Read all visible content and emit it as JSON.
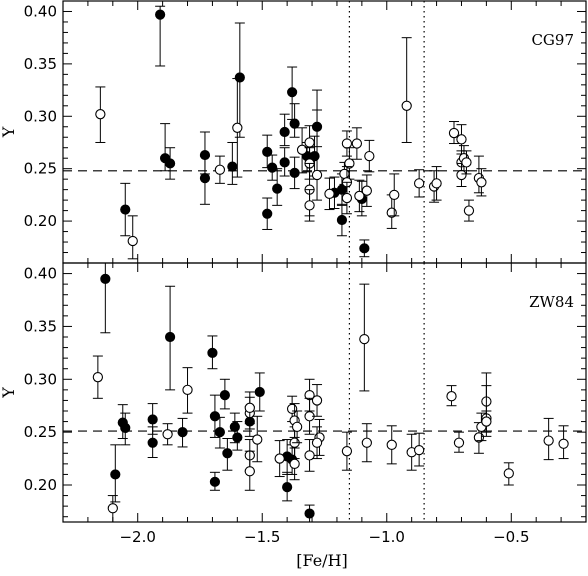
{
  "chart_data": [
    {
      "type": "scatter",
      "panel_label": "CG97",
      "ylabel": "Y",
      "xlim": [
        -2.3,
        -0.2
      ],
      "ylim": [
        0.16,
        0.41
      ],
      "xticks": [
        -2.0,
        -1.5,
        -1.0,
        -0.5
      ],
      "yticks": [
        0.2,
        0.25,
        0.3,
        0.35,
        0.4
      ],
      "ytick_labels": [
        "0.20",
        "0.25",
        "0.30",
        "0.35",
        "0.40"
      ],
      "reference_line_y": 0.248,
      "vertical_lines_x": [
        -1.15,
        -0.85
      ],
      "series": [
        {
          "marker": "filled",
          "points": [
            {
              "x": -2.05,
              "y": 0.211,
              "lo": 0.186,
              "hi": 0.236
            },
            {
              "x": -1.91,
              "y": 0.397,
              "lo": 0.348,
              "hi": 0.405
            },
            {
              "x": -1.89,
              "y": 0.26,
              "lo": 0.248,
              "hi": 0.293
            },
            {
              "x": -1.87,
              "y": 0.255,
              "lo": 0.24,
              "hi": 0.27
            },
            {
              "x": -1.73,
              "y": 0.263,
              "lo": 0.245,
              "hi": 0.285
            },
            {
              "x": -1.73,
              "y": 0.241,
              "lo": 0.216,
              "hi": 0.262
            },
            {
              "x": -1.62,
              "y": 0.252,
              "lo": 0.235,
              "hi": 0.275
            },
            {
              "x": -1.59,
              "y": 0.337,
              "lo": 0.28,
              "hi": 0.389
            },
            {
              "x": -1.48,
              "y": 0.266,
              "lo": 0.251,
              "hi": 0.282
            },
            {
              "x": -1.48,
              "y": 0.207,
              "lo": 0.192,
              "hi": 0.222
            },
            {
              "x": -1.46,
              "y": 0.251,
              "lo": 0.239,
              "hi": 0.263
            },
            {
              "x": -1.44,
              "y": 0.231,
              "lo": 0.215,
              "hi": 0.25
            },
            {
              "x": -1.41,
              "y": 0.285,
              "lo": 0.272,
              "hi": 0.302
            },
            {
              "x": -1.41,
              "y": 0.256,
              "lo": 0.243,
              "hi": 0.27
            },
            {
              "x": -1.38,
              "y": 0.323,
              "lo": 0.297,
              "hi": 0.347
            },
            {
              "x": -1.37,
              "y": 0.293,
              "lo": 0.28,
              "hi": 0.312
            },
            {
              "x": -1.37,
              "y": 0.246,
              "lo": 0.231,
              "hi": 0.261
            },
            {
              "x": -1.32,
              "y": 0.262,
              "lo": 0.247,
              "hi": 0.275
            },
            {
              "x": -1.28,
              "y": 0.29,
              "lo": 0.271,
              "hi": 0.306
            },
            {
              "x": -1.29,
              "y": 0.262,
              "lo": 0.243,
              "hi": 0.281
            },
            {
              "x": -1.21,
              "y": 0.227,
              "lo": 0.212,
              "hi": 0.242
            },
            {
              "x": -1.18,
              "y": 0.23,
              "lo": 0.215,
              "hi": 0.245
            },
            {
              "x": -1.18,
              "y": 0.201,
              "lo": 0.186,
              "hi": 0.216
            },
            {
              "x": -1.1,
              "y": 0.221,
              "lo": 0.205,
              "hi": 0.238
            },
            {
              "x": -1.09,
              "y": 0.174,
              "lo": 0.166,
              "hi": 0.182
            }
          ]
        },
        {
          "marker": "open",
          "points": [
            {
              "x": -2.15,
              "y": 0.302,
              "lo": 0.275,
              "hi": 0.328
            },
            {
              "x": -2.02,
              "y": 0.181,
              "lo": 0.164,
              "hi": 0.205
            },
            {
              "x": -1.67,
              "y": 0.249,
              "lo": 0.236,
              "hi": 0.262
            },
            {
              "x": -1.6,
              "y": 0.289,
              "lo": 0.242,
              "hi": 0.336
            },
            {
              "x": -1.34,
              "y": 0.268,
              "lo": 0.246,
              "hi": 0.289
            },
            {
              "x": -1.31,
              "y": 0.275,
              "lo": 0.26,
              "hi": 0.291
            },
            {
              "x": -1.31,
              "y": 0.255,
              "lo": 0.24,
              "hi": 0.27
            },
            {
              "x": -1.31,
              "y": 0.23,
              "lo": 0.205,
              "hi": 0.255
            },
            {
              "x": -1.31,
              "y": 0.215,
              "lo": 0.2,
              "hi": 0.23
            },
            {
              "x": -1.28,
              "y": 0.244,
              "lo": 0.22,
              "hi": 0.325
            },
            {
              "x": -1.23,
              "y": 0.226,
              "lo": 0.211,
              "hi": 0.241
            },
            {
              "x": -1.17,
              "y": 0.245,
              "lo": 0.235,
              "hi": 0.256
            },
            {
              "x": -1.16,
              "y": 0.274,
              "lo": 0.262,
              "hi": 0.286
            },
            {
              "x": -1.15,
              "y": 0.255,
              "lo": 0.24,
              "hi": 0.27
            },
            {
              "x": -1.16,
              "y": 0.237,
              "lo": 0.222,
              "hi": 0.252
            },
            {
              "x": -1.16,
              "y": 0.222,
              "lo": 0.207,
              "hi": 0.237
            },
            {
              "x": -1.12,
              "y": 0.274,
              "lo": 0.259,
              "hi": 0.289
            },
            {
              "x": -1.11,
              "y": 0.224,
              "lo": 0.209,
              "hi": 0.239
            },
            {
              "x": -1.08,
              "y": 0.229,
              "lo": 0.214,
              "hi": 0.244
            },
            {
              "x": -1.07,
              "y": 0.262,
              "lo": 0.247,
              "hi": 0.277
            },
            {
              "x": -0.98,
              "y": 0.208,
              "lo": 0.193,
              "hi": 0.225
            },
            {
              "x": -0.97,
              "y": 0.225,
              "lo": 0.205,
              "hi": 0.245
            },
            {
              "x": -0.92,
              "y": 0.31,
              "lo": 0.275,
              "hi": 0.375
            },
            {
              "x": -0.87,
              "y": 0.236,
              "lo": 0.223,
              "hi": 0.249
            },
            {
              "x": -0.81,
              "y": 0.233,
              "lo": 0.218,
              "hi": 0.248
            },
            {
              "x": -0.8,
              "y": 0.236,
              "lo": 0.22,
              "hi": 0.252
            },
            {
              "x": -0.73,
              "y": 0.284,
              "lo": 0.274,
              "hi": 0.295
            },
            {
              "x": -0.7,
              "y": 0.278,
              "lo": 0.264,
              "hi": 0.292
            },
            {
              "x": -0.7,
              "y": 0.256,
              "lo": 0.245,
              "hi": 0.267
            },
            {
              "x": -0.7,
              "y": 0.244,
              "lo": 0.233,
              "hi": 0.255
            },
            {
              "x": -0.69,
              "y": 0.26,
              "lo": 0.248,
              "hi": 0.272
            },
            {
              "x": -0.68,
              "y": 0.256,
              "lo": 0.245,
              "hi": 0.267
            },
            {
              "x": -0.67,
              "y": 0.21,
              "lo": 0.2,
              "hi": 0.22
            },
            {
              "x": -0.63,
              "y": 0.241,
              "lo": 0.227,
              "hi": 0.262
            },
            {
              "x": -0.62,
              "y": 0.237,
              "lo": 0.224,
              "hi": 0.25
            }
          ]
        }
      ]
    },
    {
      "type": "scatter",
      "panel_label": "ZW84",
      "xlabel": "[Fe/H]",
      "ylabel": "Y",
      "xlim": [
        -2.3,
        -0.2
      ],
      "ylim": [
        0.165,
        0.41
      ],
      "xticks": [
        -2.0,
        -1.5,
        -1.0,
        -0.5
      ],
      "xtick_labels": [
        "−2.0",
        "−1.5",
        "−1.0",
        "−0.5"
      ],
      "yticks": [
        0.2,
        0.25,
        0.3,
        0.35,
        0.4
      ],
      "ytick_labels": [
        "0.20",
        "0.25",
        "0.30",
        "0.35",
        "0.40"
      ],
      "reference_line_y": 0.251,
      "vertical_lines_x": [
        -1.15,
        -0.85
      ],
      "series": [
        {
          "marker": "filled",
          "points": [
            {
              "x": -2.13,
              "y": 0.395,
              "lo": 0.344,
              "hi": 0.41
            },
            {
              "x": -2.09,
              "y": 0.21,
              "lo": 0.184,
              "hi": 0.238
            },
            {
              "x": -2.06,
              "y": 0.259,
              "lo": 0.244,
              "hi": 0.276
            },
            {
              "x": -2.05,
              "y": 0.254,
              "lo": 0.238,
              "hi": 0.268
            },
            {
              "x": -1.94,
              "y": 0.262,
              "lo": 0.248,
              "hi": 0.277
            },
            {
              "x": -1.94,
              "y": 0.24,
              "lo": 0.226,
              "hi": 0.255
            },
            {
              "x": -1.87,
              "y": 0.34,
              "lo": 0.29,
              "hi": 0.388
            },
            {
              "x": -1.82,
              "y": 0.25,
              "lo": 0.236,
              "hi": 0.263
            },
            {
              "x": -1.7,
              "y": 0.325,
              "lo": 0.31,
              "hi": 0.341
            },
            {
              "x": -1.69,
              "y": 0.265,
              "lo": 0.245,
              "hi": 0.285
            },
            {
              "x": -1.69,
              "y": 0.203,
              "lo": 0.195,
              "hi": 0.212
            },
            {
              "x": -1.67,
              "y": 0.25,
              "lo": 0.235,
              "hi": 0.264
            },
            {
              "x": -1.65,
              "y": 0.285,
              "lo": 0.272,
              "hi": 0.3
            },
            {
              "x": -1.64,
              "y": 0.23,
              "lo": 0.214,
              "hi": 0.244
            },
            {
              "x": -1.61,
              "y": 0.255,
              "lo": 0.24,
              "hi": 0.268
            },
            {
              "x": -1.6,
              "y": 0.245,
              "lo": 0.233,
              "hi": 0.26
            },
            {
              "x": -1.55,
              "y": 0.26,
              "lo": 0.246,
              "hi": 0.274
            },
            {
              "x": -1.51,
              "y": 0.288,
              "lo": 0.27,
              "hi": 0.306
            },
            {
              "x": -1.4,
              "y": 0.227,
              "lo": 0.21,
              "hi": 0.243
            },
            {
              "x": -1.4,
              "y": 0.198,
              "lo": 0.185,
              "hi": 0.212
            },
            {
              "x": -1.38,
              "y": 0.224,
              "lo": 0.21,
              "hi": 0.238
            },
            {
              "x": -1.31,
              "y": 0.173,
              "lo": 0.165,
              "hi": 0.181
            }
          ]
        },
        {
          "marker": "open",
          "points": [
            {
              "x": -2.16,
              "y": 0.302,
              "lo": 0.282,
              "hi": 0.322
            },
            {
              "x": -2.1,
              "y": 0.178,
              "lo": 0.165,
              "hi": 0.19
            },
            {
              "x": -1.88,
              "y": 0.248,
              "lo": 0.238,
              "hi": 0.258
            },
            {
              "x": -1.8,
              "y": 0.29,
              "lo": 0.268,
              "hi": 0.311
            },
            {
              "x": -1.55,
              "y": 0.268,
              "lo": 0.253,
              "hi": 0.283
            },
            {
              "x": -1.55,
              "y": 0.273,
              "lo": 0.258,
              "hi": 0.288
            },
            {
              "x": -1.55,
              "y": 0.228,
              "lo": 0.213,
              "hi": 0.243
            },
            {
              "x": -1.55,
              "y": 0.213,
              "lo": 0.195,
              "hi": 0.232
            },
            {
              "x": -1.52,
              "y": 0.243,
              "lo": 0.222,
              "hi": 0.265
            },
            {
              "x": -1.43,
              "y": 0.225,
              "lo": 0.208,
              "hi": 0.242
            },
            {
              "x": -1.38,
              "y": 0.272,
              "lo": 0.26,
              "hi": 0.284
            },
            {
              "x": -1.37,
              "y": 0.261,
              "lo": 0.245,
              "hi": 0.277
            },
            {
              "x": -1.37,
              "y": 0.24,
              "lo": 0.225,
              "hi": 0.255
            },
            {
              "x": -1.37,
              "y": 0.22,
              "lo": 0.205,
              "hi": 0.235
            },
            {
              "x": -1.36,
              "y": 0.255,
              "lo": 0.24,
              "hi": 0.27
            },
            {
              "x": -1.31,
              "y": 0.285,
              "lo": 0.27,
              "hi": 0.3
            },
            {
              "x": -1.31,
              "y": 0.265,
              "lo": 0.248,
              "hi": 0.282
            },
            {
              "x": -1.31,
              "y": 0.228,
              "lo": 0.213,
              "hi": 0.243
            },
            {
              "x": -1.28,
              "y": 0.28,
              "lo": 0.265,
              "hi": 0.295
            },
            {
              "x": -1.27,
              "y": 0.245,
              "lo": 0.228,
              "hi": 0.262
            },
            {
              "x": -1.28,
              "y": 0.24,
              "lo": 0.225,
              "hi": 0.255
            },
            {
              "x": -1.16,
              "y": 0.232,
              "lo": 0.214,
              "hi": 0.25
            },
            {
              "x": -1.09,
              "y": 0.338,
              "lo": 0.289,
              "hi": 0.39
            },
            {
              "x": -1.08,
              "y": 0.24,
              "lo": 0.222,
              "hi": 0.258
            },
            {
              "x": -0.98,
              "y": 0.238,
              "lo": 0.22,
              "hi": 0.256
            },
            {
              "x": -0.9,
              "y": 0.231,
              "lo": 0.214,
              "hi": 0.248
            },
            {
              "x": -0.87,
              "y": 0.233,
              "lo": 0.218,
              "hi": 0.249
            },
            {
              "x": -0.74,
              "y": 0.284,
              "lo": 0.275,
              "hi": 0.294
            },
            {
              "x": -0.71,
              "y": 0.24,
              "lo": 0.231,
              "hi": 0.25
            },
            {
              "x": -0.63,
              "y": 0.245,
              "lo": 0.23,
              "hi": 0.259
            },
            {
              "x": -0.62,
              "y": 0.255,
              "lo": 0.242,
              "hi": 0.268
            },
            {
              "x": -0.6,
              "y": 0.279,
              "lo": 0.264,
              "hi": 0.294
            },
            {
              "x": -0.6,
              "y": 0.263,
              "lo": 0.246,
              "hi": 0.306
            },
            {
              "x": -0.6,
              "y": 0.26,
              "lo": 0.25,
              "hi": 0.27
            },
            {
              "x": -0.51,
              "y": 0.211,
              "lo": 0.2,
              "hi": 0.221
            },
            {
              "x": -0.35,
              "y": 0.242,
              "lo": 0.224,
              "hi": 0.263
            },
            {
              "x": -0.29,
              "y": 0.239,
              "lo": 0.225,
              "hi": 0.256
            }
          ]
        }
      ]
    }
  ]
}
